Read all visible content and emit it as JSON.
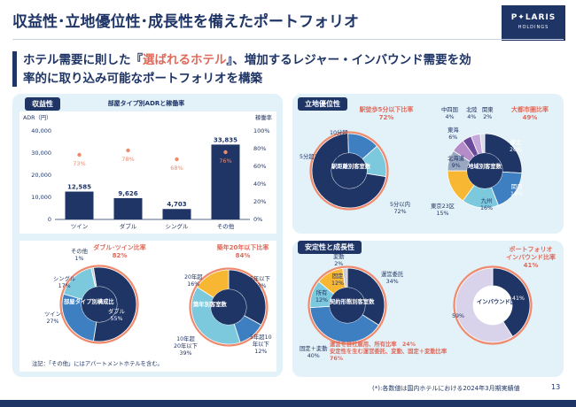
{
  "header": {
    "title": "収益性･立地優位性･成長性を備えたポートフォリオ",
    "logo_name": "P✦LARIS",
    "logo_sub": "HOLDINGS"
  },
  "subtitle": {
    "line1_pre": "ホテル需要に則した『",
    "line1_hl": "選ばれるホテル",
    "line1_post": "』、増加するレジャー・インバウンド需要を効",
    "line2": "率的に取り込み可能なポートフォリオを構築"
  },
  "profitability": {
    "tag": "収益性",
    "chart_title": "部屋タイプ別ADRと稼働率",
    "left_axis_label": "ADR（円）",
    "right_axis_label": "稼働率",
    "left_ticks": [
      "40,000",
      "30,000",
      "20,000",
      "10,000",
      "0"
    ],
    "right_ticks": [
      "100%",
      "80%",
      "60%",
      "40%",
      "20%",
      "0%"
    ],
    "note": "注記：「その他」にはアパートメントホテルを含む。"
  },
  "chart_data": [
    {
      "type": "bar",
      "title": "部屋タイプ別ADRと稼働率",
      "categories": [
        "ツイン",
        "ダブル",
        "シングル",
        "その他"
      ],
      "series": [
        {
          "name": "ADR（円）",
          "values": [
            12585,
            9626,
            4703,
            33835
          ],
          "labels": [
            "12,585",
            "9,626",
            "4,703",
            "33,835"
          ]
        },
        {
          "name": "稼働率",
          "values": [
            73,
            78,
            68,
            76
          ],
          "labels": [
            "73%",
            "78%",
            "68%",
            "76%"
          ]
        }
      ],
      "ylim": [
        0,
        40000
      ],
      "y2lim": [
        0,
        100
      ],
      "colors": {
        "bar": "#1f3566",
        "rate": "#f08a6c"
      }
    },
    {
      "type": "pie",
      "center_label": "部屋タイプ別構成比",
      "caption": "ダブル･ツイン比率",
      "caption_value": "82%",
      "labels": [
        "ダブル",
        "ツイン",
        "シングル",
        "その他"
      ],
      "values": [
        55,
        27,
        17,
        1
      ],
      "value_labels": [
        "55%",
        "27%",
        "17%",
        "1%"
      ],
      "colors": [
        "#1f3566",
        "#3e7fc1",
        "#7cc8dc",
        "#c9cbd6"
      ]
    },
    {
      "type": "pie",
      "center_label": "築年別客室数",
      "caption": "築年20年以下比率",
      "caption_value": "84%",
      "labels": [
        "5年以下",
        "5年超10年以下",
        "10年超20年以下",
        "20年超"
      ],
      "values": [
        33,
        12,
        39,
        16
      ],
      "value_labels": [
        "33%",
        "12%",
        "39%",
        "16%"
      ],
      "colors": [
        "#1f3566",
        "#3e7fc1",
        "#7cc8dc",
        "#f7b733"
      ]
    },
    {
      "type": "pie",
      "center_label": "駅距離別客室数",
      "caption": "駅徒歩5分以下比率",
      "caption_value": "72%",
      "labels": [
        "5分以内",
        "5分超10分以内",
        "10分超"
      ],
      "values": [
        72,
        14,
        14
      ],
      "value_labels": [
        "72%",
        "14%",
        "14%"
      ],
      "colors": [
        "#1f3566",
        "#3e7fc1",
        "#7cc8dc"
      ]
    },
    {
      "type": "pie",
      "center_label": "地域別客室数",
      "caption": "大都市圏比率",
      "caption_value": "49%",
      "labels": [
        "東北",
        "関西",
        "九州",
        "東京23区",
        "北海道",
        "東海",
        "中四国",
        "北陸",
        "関東"
      ],
      "values": [
        26,
        18,
        16,
        15,
        9,
        6,
        4,
        4,
        2
      ],
      "value_labels": [
        "26%",
        "18%",
        "16%",
        "15%",
        "9%",
        "6%",
        "4%",
        "4%",
        "2%"
      ],
      "colors": [
        "#1f3566",
        "#3e7fc1",
        "#7cc8dc",
        "#f7b733",
        "#9aa7c0",
        "#b48cc8",
        "#6a4a9a",
        "#c4a8dc",
        "#d7dbe8"
      ]
    },
    {
      "type": "pie",
      "center_label": "契約形態別客室数",
      "labels": [
        "運営委託",
        "固定＋変動",
        "所有",
        "固定",
        "変動"
      ],
      "values": [
        34,
        40,
        12,
        12,
        2
      ],
      "value_labels": [
        "34%",
        "40%",
        "12%",
        "12%",
        "2%"
      ],
      "colors": [
        "#1f3566",
        "#3e7fc1",
        "#7cc8dc",
        "#f7b733",
        "#c9cbd6"
      ]
    },
    {
      "type": "pie",
      "center_label": "インバウンド比率",
      "caption": "ポートフォリオインバウンド比率",
      "caption_value": "41%",
      "labels": [
        "インバウンド",
        "国内"
      ],
      "values": [
        41,
        59
      ],
      "value_labels": [
        "41%",
        "59%"
      ],
      "colors": [
        "#1f3566",
        "#d8d3ea"
      ]
    }
  ],
  "location": {
    "tag": "立地優位性",
    "station_caption": "駅徒歩5分以下比率",
    "station_value": "72%",
    "station_center": "駅距離別客室数",
    "station_labels": {
      "within5": "5分以内",
      "within5_v": "72%",
      "five10": "5分超10分以内",
      "five10_v": "14%",
      "over10": "10分超",
      "over10_v": "14%"
    },
    "region_caption": "大都市圏比率",
    "region_value": "49%",
    "region_center": "地域別客室数",
    "region_labels": {
      "tohoku": "東北",
      "tohoku_v": "26%",
      "kansai": "関西",
      "kansai_v": "18%",
      "kyushu": "九州",
      "kyushu_v": "16%",
      "tokyo": "東京23区",
      "tokyo_v": "15%",
      "hokkaido": "北海道",
      "hokkaido_v": "9%",
      "tokai": "東海",
      "tokai_v": "6%",
      "chushikoku": "中四国",
      "chushikoku_v": "4%",
      "hokuriku": "北陸",
      "hokuriku_v": "4%",
      "kanto": "関東",
      "kanto_v": "2%"
    }
  },
  "stability": {
    "tag": "安定性と成長性",
    "contract_center": "契約形態別客室数",
    "contract_labels": {
      "un": "運営委託",
      "un_v": "34%",
      "kv": "固定＋変動",
      "kv_v": "40%",
      "own": "所有",
      "own_v": "12%",
      "fix": "固定",
      "fix_v": "12%",
      "var": "変動",
      "var_v": "2%"
    },
    "contract_note1": "運営を自社雇用、所有比率　24%",
    "contract_note2": "安定性を生む運営委託、変動、固定＋変動比率",
    "contract_note3": "76%",
    "inbound_caption1": "ポートフォリオ",
    "inbound_caption2": "インバウンド比率",
    "inbound_value": "41%",
    "inbound_center": "インバウンド比率",
    "inbound_v": "41%",
    "domestic_v": "59%"
  },
  "composition": {
    "room_caption": "ダブル･ツイン比率",
    "room_value": "82%",
    "room_center": "部屋タイプ別構成比",
    "room_labels": {
      "other": "その他",
      "other_v": "1%",
      "single": "シングル",
      "single_v": "17%",
      "twin": "ツイン",
      "twin_v": "27%",
      "double": "ダブル",
      "double_v": "55%"
    },
    "age_caption": "築年20年以下比率",
    "age_value": "84%",
    "age_center": "築年別客室数",
    "age_labels": {
      "y5": "5年以下",
      "y5_v": "33%",
      "y10": "5年超10",
      "y10b": "年以下",
      "y10_v": "12%",
      "y20": "10年超",
      "y20b": "20年以下",
      "y20_v": "39%",
      "o20": "20年超",
      "o20_v": "16%"
    }
  },
  "footer": {
    "note": "(*):各数値は国内ホテルにおける2024年3月期実績値",
    "page": "13"
  }
}
